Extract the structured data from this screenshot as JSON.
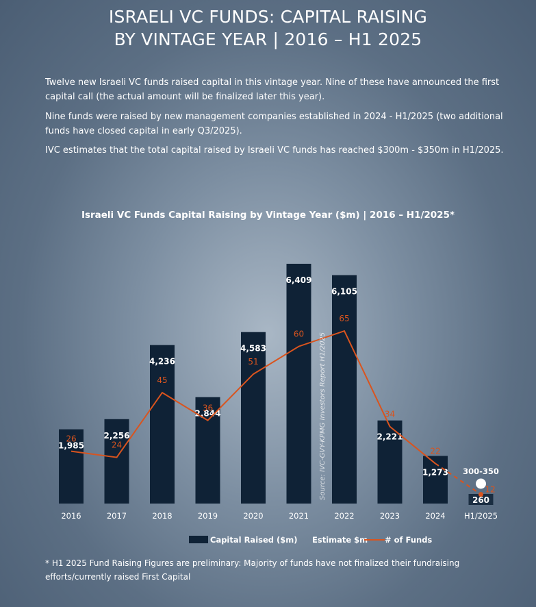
{
  "title_line1": "ISRAELI VC FUNDS: CAPITAL RAISING",
  "title_line2": "BY VINTAGE YEAR | 2016 – H1 2025",
  "paragraphs": [
    "Twelve new Israeli VC funds raised capital in this vintage year. Nine of these have announced the first capital call (the actual amount will be finalized later this year).",
    "Nine funds were raised by new management companies established in 2024 - H1/2025 (two additional funds have closed capital in early Q3/2025).",
    "IVC estimates that the total capital raised by Israeli VC funds has reached $300m - $350m in H1/2025."
  ],
  "chart_data": {
    "type": "bar",
    "title": "Israeli VC Funds Capital Raising by Vintage Year ($m) | 2016 – H1/2025*",
    "categories": [
      "2016",
      "2017",
      "2018",
      "2019",
      "2020",
      "2021",
      "2022",
      "2023",
      "2024",
      "H1/2025"
    ],
    "series": [
      {
        "name": "Capital Raised ($m)",
        "type": "bar",
        "color": "#0f2236",
        "values": [
          1985,
          2256,
          4236,
          2844,
          4583,
          6409,
          6105,
          2221,
          1273,
          260
        ],
        "labels": [
          "1,985",
          "2,256",
          "4,236",
          "2,844",
          "4,583",
          "6,409",
          "6,105",
          "2,221",
          "1,273",
          "260"
        ]
      },
      {
        "name": "Estimate $m",
        "type": "marker",
        "color": "#ffffff",
        "category": "H1/2025",
        "value_label": "300-350"
      },
      {
        "name": "# of Funds",
        "type": "line",
        "color": "#d9541e",
        "values": [
          26,
          24,
          45,
          36,
          51,
          60,
          65,
          34,
          22,
          12
        ],
        "dashed_last_segment": true
      }
    ],
    "source": "Source: IVC-GVY-KPMG Investors Report H1/2025",
    "xlabel": "",
    "ylabel": "",
    "grid": false,
    "legend_position": "bottom"
  },
  "footnote": "* H1 2025 Fund Raising Figures are preliminary: Majority of funds have not finalized their fundraising efforts/currently raised First Capital"
}
